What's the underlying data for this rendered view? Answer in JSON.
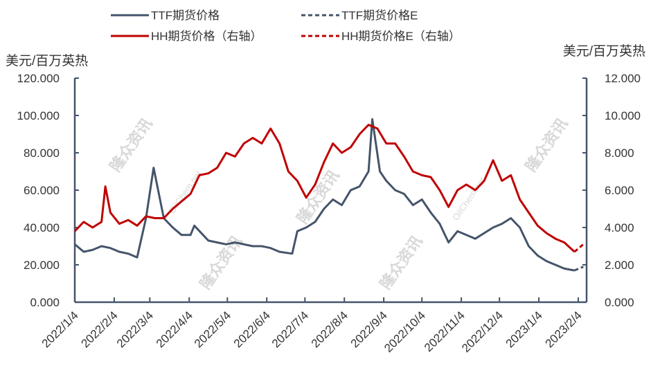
{
  "chart_data": {
    "type": "line",
    "title": "",
    "ylabel_left": "美元/百万英热",
    "ylabel_right": "美元/百万英热",
    "ylim_left": [
      0,
      120
    ],
    "ylim_right": [
      0,
      12
    ],
    "yticks_left": [
      "0.000",
      "20.000",
      "40.000",
      "60.000",
      "80.000",
      "100.000",
      "120.000"
    ],
    "yticks_right": [
      "0.000",
      "2.000",
      "4.000",
      "6.000",
      "8.000",
      "10.000",
      "12.000"
    ],
    "xticks": [
      "2022/1/4",
      "2022/2/4",
      "2022/3/4",
      "2022/4/4",
      "2022/5/4",
      "2022/6/4",
      "2022/7/4",
      "2022/8/4",
      "2022/9/4",
      "2022/10/4",
      "2022/11/4",
      "2022/12/4",
      "2023/1/4",
      "2023/2/4"
    ],
    "legend_position": "top",
    "grid": false,
    "watermark": [
      "隆众资讯",
      "OilChem.net"
    ],
    "series": [
      {
        "name": "TTF期货价格",
        "axis": "left",
        "color": "#44546a",
        "style": "solid",
        "x": [
          "2022-01-04",
          "2022-01-11",
          "2022-01-18",
          "2022-01-25",
          "2022-02-01",
          "2022-02-08",
          "2022-02-15",
          "2022-02-22",
          "2022-03-01",
          "2022-03-07",
          "2022-03-15",
          "2022-03-22",
          "2022-03-29",
          "2022-04-05",
          "2022-04-08",
          "2022-04-19",
          "2022-04-26",
          "2022-05-03",
          "2022-05-10",
          "2022-05-17",
          "2022-05-24",
          "2022-05-31",
          "2022-06-07",
          "2022-06-14",
          "2022-06-24",
          "2022-06-28",
          "2022-07-05",
          "2022-07-12",
          "2022-07-19",
          "2022-07-26",
          "2022-08-02",
          "2022-08-09",
          "2022-08-16",
          "2022-08-23",
          "2022-08-26",
          "2022-09-01",
          "2022-09-06",
          "2022-09-13",
          "2022-09-20",
          "2022-09-27",
          "2022-10-04",
          "2022-10-11",
          "2022-10-18",
          "2022-10-25",
          "2022-11-01",
          "2022-11-08",
          "2022-11-15",
          "2022-11-22",
          "2022-11-29",
          "2022-12-06",
          "2022-12-13",
          "2022-12-20",
          "2022-12-27",
          "2023-01-03",
          "2023-01-10",
          "2023-01-17",
          "2023-01-24",
          "2023-02-01"
        ],
        "values": [
          31,
          27,
          28,
          30,
          29,
          27,
          26,
          24,
          45,
          72,
          45,
          40,
          36,
          36,
          41,
          33,
          32,
          31,
          32,
          31,
          30,
          30,
          29,
          27,
          26,
          38,
          40,
          43,
          50,
          55,
          52,
          60,
          62,
          70,
          98,
          70,
          65,
          60,
          58,
          52,
          55,
          48,
          42,
          32,
          38,
          36,
          34,
          37,
          40,
          42,
          45,
          40,
          30,
          25,
          22,
          20,
          18,
          17
        ]
      },
      {
        "name": "TTF期货价格E",
        "axis": "left",
        "color": "#44546a",
        "style": "dashed",
        "x": [
          "2023-02-01",
          "2023-02-08"
        ],
        "values": [
          17,
          19
        ]
      },
      {
        "name": "HH期货价格（右轴）",
        "axis": "right",
        "color": "#c00000",
        "style": "solid",
        "x": [
          "2022-01-04",
          "2022-01-11",
          "2022-01-18",
          "2022-01-25",
          "2022-01-28",
          "2022-02-01",
          "2022-02-08",
          "2022-02-15",
          "2022-02-22",
          "2022-03-01",
          "2022-03-08",
          "2022-03-15",
          "2022-03-22",
          "2022-03-29",
          "2022-04-05",
          "2022-04-12",
          "2022-04-19",
          "2022-04-26",
          "2022-05-03",
          "2022-05-10",
          "2022-05-17",
          "2022-05-24",
          "2022-05-31",
          "2022-06-07",
          "2022-06-14",
          "2022-06-21",
          "2022-06-28",
          "2022-07-05",
          "2022-07-12",
          "2022-07-19",
          "2022-07-26",
          "2022-08-02",
          "2022-08-09",
          "2022-08-16",
          "2022-08-23",
          "2022-08-30",
          "2022-09-06",
          "2022-09-13",
          "2022-09-20",
          "2022-09-27",
          "2022-10-04",
          "2022-10-11",
          "2022-10-18",
          "2022-10-25",
          "2022-11-01",
          "2022-11-08",
          "2022-11-15",
          "2022-11-22",
          "2022-11-29",
          "2022-12-06",
          "2022-12-13",
          "2022-12-20",
          "2022-12-27",
          "2023-01-03",
          "2023-01-10",
          "2023-01-17",
          "2023-01-24",
          "2023-02-01"
        ],
        "values": [
          3.8,
          4.3,
          4.0,
          4.3,
          6.2,
          4.8,
          4.2,
          4.4,
          4.1,
          4.6,
          4.5,
          4.5,
          5.0,
          5.4,
          5.8,
          6.8,
          6.9,
          7.2,
          8.0,
          7.8,
          8.5,
          8.8,
          8.5,
          9.3,
          8.5,
          7.0,
          6.5,
          5.6,
          6.3,
          7.5,
          8.5,
          8.0,
          8.3,
          9.0,
          9.5,
          9.3,
          8.5,
          8.5,
          7.8,
          7.0,
          6.8,
          6.7,
          6.0,
          5.1,
          6.0,
          6.3,
          6.0,
          6.5,
          7.6,
          6.5,
          6.8,
          5.5,
          4.8,
          4.1,
          3.7,
          3.4,
          3.2,
          2.7
        ]
      },
      {
        "name": "HH期货价格E（右轴）",
        "axis": "right",
        "color": "#c00000",
        "style": "dashed",
        "x": [
          "2023-02-01",
          "2023-02-08"
        ],
        "values": [
          2.7,
          3.1
        ]
      }
    ]
  }
}
